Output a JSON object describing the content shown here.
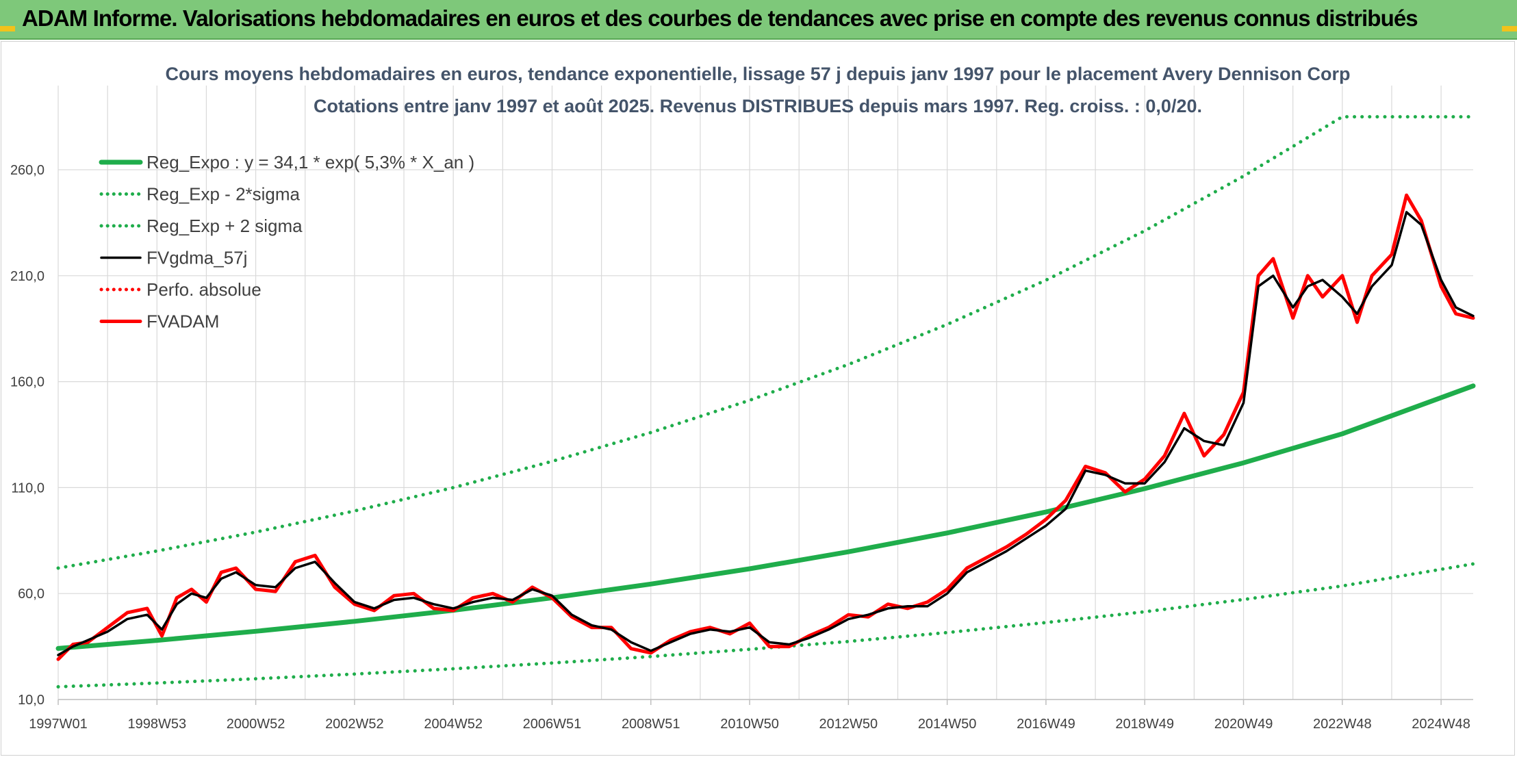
{
  "banner": {
    "title": "ADAM Informe. Valorisations hebdomadaires en euros et des courbes de tendances avec prise en compte des revenus connus distribués"
  },
  "colors": {
    "banner_bg": "#7ec87a",
    "reg_expo": "#1fad4b",
    "fvgdma": "#000000",
    "fvadam": "#ff0000",
    "perfo": "#ff0000",
    "grid": "#d9d9d9"
  },
  "chart_data": {
    "type": "line",
    "title": "Cours moyens hebdomadaires en euros, tendance exponentielle, lissage 57 j depuis janv 1997 pour le placement Avery Dennison Corp",
    "subtitle": "Cotations entre janv 1997 et août 2025. Revenus DISTRIBUES depuis mars 1997. Reg. croiss. : 0,0/20.",
    "xlabel": "",
    "ylabel": "",
    "ylim": [
      10,
      285
    ],
    "xlim": [
      1997.0,
      2025.65
    ],
    "y_ticks": [
      "10,0",
      "60,0",
      "110,0",
      "160,0",
      "210,0",
      "260,0"
    ],
    "y_tick_values": [
      10,
      60,
      110,
      160,
      210,
      260
    ],
    "x_ticks": [
      "1997W01",
      "1998W53",
      "2000W52",
      "2002W52",
      "2004W52",
      "2006W51",
      "2008W51",
      "2010W50",
      "2012W50",
      "2014W50",
      "2016W49",
      "2018W49",
      "2020W49",
      "2022W48",
      "2024W48"
    ],
    "x_tick_values": [
      1997.0,
      1999.0,
      2001.0,
      2003.0,
      2005.0,
      2007.0,
      2009.0,
      2011.0,
      2013.0,
      2015.0,
      2017.0,
      2019.0,
      2021.0,
      2023.0,
      2025.0
    ],
    "grid": true,
    "legend_position": "top-left",
    "series": [
      {
        "name": "Reg_Expo : y = 34,1 * exp( 5,3% *  X_an )",
        "style": "solid-thick",
        "color": "#1fad4b",
        "x": [
          1997.0,
          1999.0,
          2001.0,
          2003.0,
          2005.0,
          2007.0,
          2009.0,
          2011.0,
          2013.0,
          2015.0,
          2017.0,
          2019.0,
          2021.0,
          2023.0,
          2025.65
        ],
        "values": [
          34.1,
          37.9,
          42.2,
          46.9,
          52.1,
          58.0,
          64.5,
          71.7,
          79.7,
          88.6,
          98.5,
          109.5,
          121.7,
          135.4,
          158.0
        ]
      },
      {
        "name": "Reg_Exp - 2*sigma",
        "style": "dotted",
        "color": "#1fad4b",
        "x": [
          1997.0,
          1999.0,
          2001.0,
          2003.0,
          2005.0,
          2007.0,
          2009.0,
          2011.0,
          2013.0,
          2015.0,
          2017.0,
          2019.0,
          2021.0,
          2023.0,
          2025.65
        ],
        "values": [
          16.0,
          17.8,
          19.8,
          22.0,
          24.5,
          27.2,
          30.3,
          33.7,
          37.4,
          41.6,
          46.3,
          51.4,
          57.2,
          63.6,
          74.0
        ]
      },
      {
        "name": "Reg_Exp + 2 sigma",
        "style": "dotted",
        "color": "#1fad4b",
        "x": [
          1997.0,
          1999.0,
          2001.0,
          2003.0,
          2005.0,
          2007.0,
          2009.0,
          2011.0,
          2013.0,
          2015.0,
          2017.0,
          2019.0,
          2021.0,
          2023.0,
          2023.9,
          2025.65
        ],
        "values": [
          72.0,
          80.1,
          89.0,
          99.0,
          110.0,
          122.4,
          136.0,
          151.2,
          168.1,
          187.0,
          207.9,
          231.2,
          257.0,
          285.0,
          285.0,
          285.0
        ]
      },
      {
        "name": "FVgdma_57j",
        "style": "solid",
        "color": "#000000",
        "x": [
          1997.0,
          1997.3,
          1997.6,
          1998.0,
          1998.4,
          1998.8,
          1999.1,
          1999.4,
          1999.7,
          2000.0,
          2000.3,
          2000.6,
          2001.0,
          2001.4,
          2001.8,
          2002.2,
          2002.6,
          2003.0,
          2003.4,
          2003.8,
          2004.2,
          2004.6,
          2005.0,
          2005.4,
          2005.8,
          2006.2,
          2006.6,
          2007.0,
          2007.4,
          2007.8,
          2008.2,
          2008.6,
          2009.0,
          2009.4,
          2009.8,
          2010.2,
          2010.6,
          2011.0,
          2011.4,
          2011.8,
          2012.2,
          2012.6,
          2013.0,
          2013.4,
          2013.8,
          2014.2,
          2014.6,
          2015.0,
          2015.4,
          2015.8,
          2016.2,
          2016.6,
          2017.0,
          2017.4,
          2017.8,
          2018.2,
          2018.6,
          2019.0,
          2019.4,
          2019.8,
          2020.2,
          2020.6,
          2021.0,
          2021.3,
          2021.6,
          2022.0,
          2022.3,
          2022.6,
          2023.0,
          2023.3,
          2023.6,
          2024.0,
          2024.3,
          2024.6,
          2025.0,
          2025.3,
          2025.65
        ],
        "values": [
          31,
          35,
          38,
          42,
          48,
          50,
          43,
          55,
          60,
          58,
          67,
          70,
          64,
          63,
          72,
          75,
          65,
          56,
          53,
          57,
          58,
          55,
          53,
          56,
          58,
          57,
          62,
          59,
          50,
          45,
          43,
          37,
          33,
          37,
          41,
          43,
          42,
          44,
          37,
          36,
          39,
          43,
          48,
          50,
          53,
          54,
          54,
          60,
          70,
          75,
          80,
          86,
          92,
          100,
          118,
          116,
          112,
          112,
          122,
          138,
          132,
          130,
          150,
          205,
          210,
          195,
          205,
          208,
          200,
          192,
          205,
          215,
          240,
          234,
          208,
          195,
          191
        ]
      },
      {
        "name": "Perfo. absolue",
        "style": "dotted",
        "color": "#ff0000",
        "x": [],
        "values": []
      },
      {
        "name": "FVADAM",
        "style": "solid-thick",
        "color": "#ff0000",
        "x": [
          1997.0,
          1997.3,
          1997.6,
          1998.0,
          1998.4,
          1998.8,
          1999.1,
          1999.4,
          1999.7,
          2000.0,
          2000.3,
          2000.6,
          2001.0,
          2001.4,
          2001.8,
          2002.2,
          2002.6,
          2003.0,
          2003.4,
          2003.8,
          2004.2,
          2004.6,
          2005.0,
          2005.4,
          2005.8,
          2006.2,
          2006.6,
          2007.0,
          2007.4,
          2007.8,
          2008.2,
          2008.6,
          2009.0,
          2009.4,
          2009.8,
          2010.2,
          2010.6,
          2011.0,
          2011.4,
          2011.8,
          2012.2,
          2012.6,
          2013.0,
          2013.4,
          2013.8,
          2014.2,
          2014.6,
          2015.0,
          2015.4,
          2015.8,
          2016.2,
          2016.6,
          2017.0,
          2017.4,
          2017.8,
          2018.2,
          2018.6,
          2019.0,
          2019.4,
          2019.8,
          2020.2,
          2020.6,
          2021.0,
          2021.3,
          2021.6,
          2022.0,
          2022.3,
          2022.6,
          2023.0,
          2023.3,
          2023.6,
          2024.0,
          2024.3,
          2024.6,
          2025.0,
          2025.3,
          2025.65
        ],
        "values": [
          29,
          36,
          37,
          44,
          51,
          53,
          40,
          58,
          62,
          56,
          70,
          72,
          62,
          61,
          75,
          78,
          63,
          55,
          52,
          59,
          60,
          53,
          52,
          58,
          60,
          56,
          63,
          58,
          49,
          44,
          44,
          34,
          32,
          38,
          42,
          44,
          41,
          46,
          35,
          35,
          40,
          44,
          50,
          49,
          55,
          53,
          56,
          62,
          72,
          77,
          82,
          88,
          95,
          104,
          120,
          117,
          108,
          114,
          125,
          145,
          125,
          135,
          155,
          210,
          218,
          190,
          210,
          200,
          210,
          188,
          210,
          220,
          248,
          236,
          205,
          192,
          190
        ]
      }
    ]
  }
}
